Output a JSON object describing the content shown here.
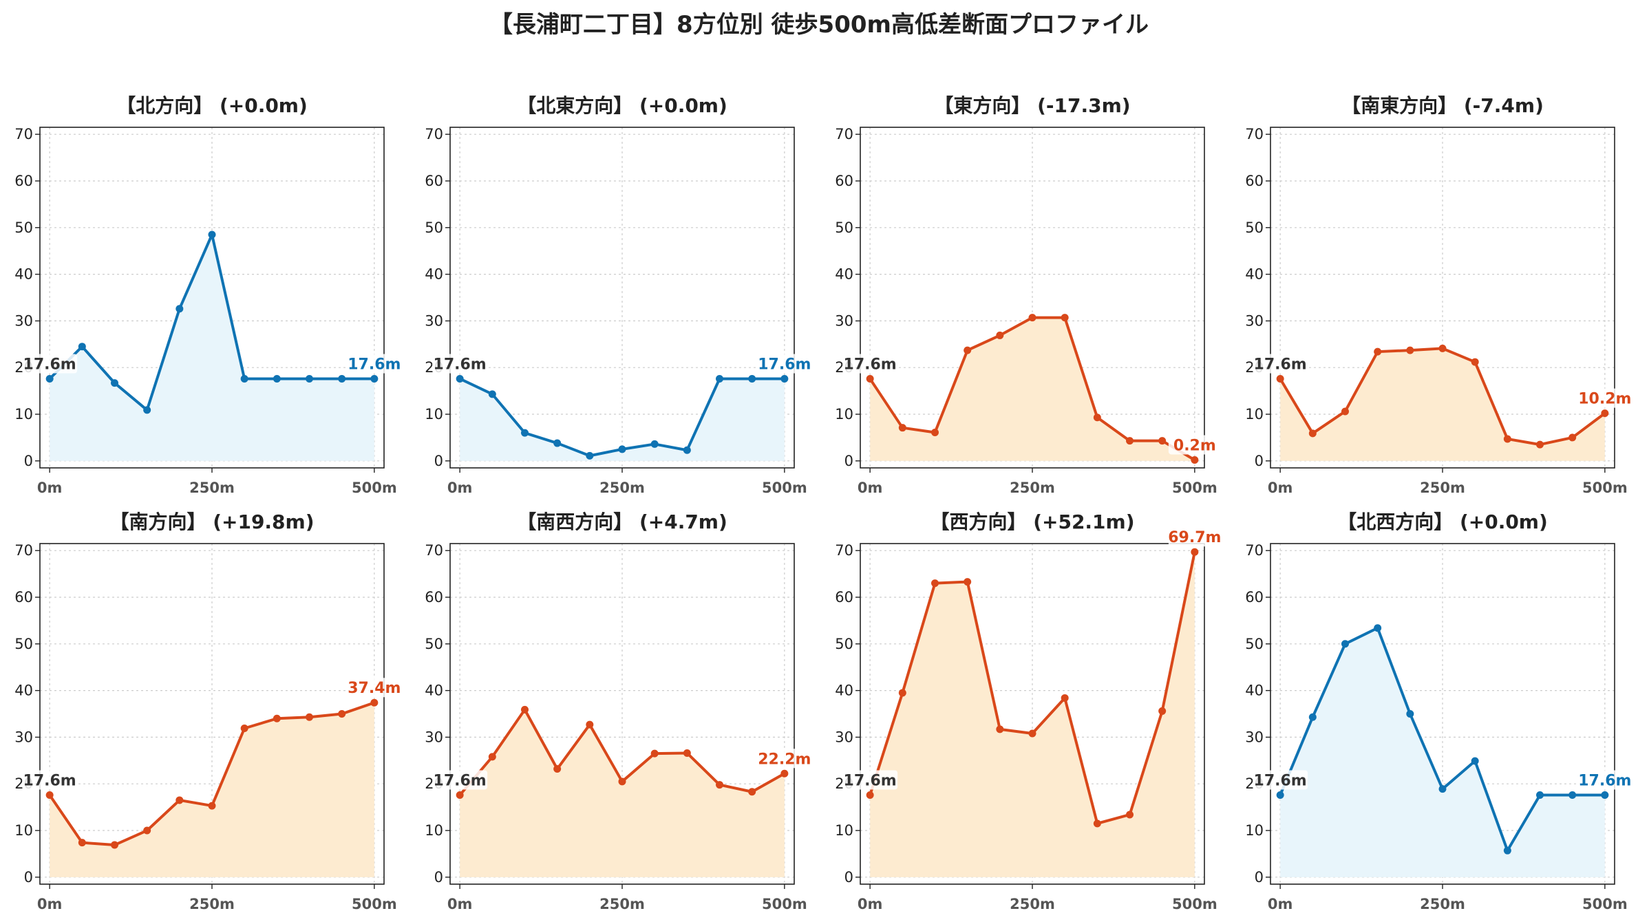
{
  "title": "【長浦町二丁目】8方位別 徒歩500m高低差断面プロファイル",
  "colors": {
    "up_line": "#d9481a",
    "up_fill": "#fdebd0",
    "flat_line": "#0f73b3",
    "flat_fill": "#e8f5fb",
    "start_label": "#333333",
    "grid": "#cccccc"
  },
  "chart_data": [
    {
      "type": "area",
      "title": "【北方向】 (+0.0m)",
      "trend": "flat",
      "x": [
        0,
        50,
        100,
        150,
        200,
        250,
        300,
        350,
        400,
        450,
        500
      ],
      "values": [
        17.6,
        24.5,
        16.7,
        10.9,
        32.6,
        48.5,
        17.6,
        17.6,
        17.6,
        17.6,
        17.6
      ],
      "start_label": "17.6m",
      "end_label": "17.6m",
      "x_tick_labels": [
        "0m",
        "250m",
        "500m"
      ],
      "y_ticks": [
        0,
        10,
        20,
        30,
        40,
        50,
        60,
        70
      ],
      "xlim": [
        -15,
        515
      ],
      "ylim": [
        -1.5,
        71.5
      ],
      "grid": true
    },
    {
      "type": "area",
      "title": "【北東方向】 (+0.0m)",
      "trend": "flat",
      "x": [
        0,
        50,
        100,
        150,
        200,
        250,
        300,
        350,
        400,
        450,
        500
      ],
      "values": [
        17.6,
        14.3,
        6.0,
        3.8,
        1.1,
        2.5,
        3.6,
        2.3,
        17.6,
        17.6,
        17.6
      ],
      "start_label": "17.6m",
      "end_label": "17.6m",
      "x_tick_labels": [
        "0m",
        "250m",
        "500m"
      ],
      "y_ticks": [
        0,
        10,
        20,
        30,
        40,
        50,
        60,
        70
      ],
      "xlim": [
        -15,
        515
      ],
      "ylim": [
        -1.5,
        71.5
      ],
      "grid": true
    },
    {
      "type": "area",
      "title": "【東方向】 (-17.3m)",
      "trend": "change",
      "x": [
        0,
        50,
        100,
        150,
        200,
        250,
        300,
        350,
        400,
        450,
        500
      ],
      "values": [
        17.6,
        7.1,
        6.1,
        23.7,
        26.9,
        30.7,
        30.7,
        9.3,
        4.3,
        4.3,
        0.2
      ],
      "start_label": "17.6m",
      "end_label": "0.2m",
      "x_tick_labels": [
        "0m",
        "250m",
        "500m"
      ],
      "y_ticks": [
        0,
        10,
        20,
        30,
        40,
        50,
        60,
        70
      ],
      "xlim": [
        -15,
        515
      ],
      "ylim": [
        -1.5,
        71.5
      ],
      "grid": true
    },
    {
      "type": "area",
      "title": "【南東方向】 (-7.4m)",
      "trend": "change",
      "x": [
        0,
        50,
        100,
        150,
        200,
        250,
        300,
        350,
        400,
        450,
        500
      ],
      "values": [
        17.6,
        5.9,
        10.6,
        23.4,
        23.7,
        24.1,
        21.2,
        4.7,
        3.5,
        5.0,
        10.2
      ],
      "start_label": "17.6m",
      "end_label": "10.2m",
      "x_tick_labels": [
        "0m",
        "250m",
        "500m"
      ],
      "y_ticks": [
        0,
        10,
        20,
        30,
        40,
        50,
        60,
        70
      ],
      "xlim": [
        -15,
        515
      ],
      "ylim": [
        -1.5,
        71.5
      ],
      "grid": true
    },
    {
      "type": "area",
      "title": "【南方向】 (+19.8m)",
      "trend": "change",
      "x": [
        0,
        50,
        100,
        150,
        200,
        250,
        300,
        350,
        400,
        450,
        500
      ],
      "values": [
        17.6,
        7.4,
        6.9,
        10.0,
        16.5,
        15.3,
        31.9,
        34.0,
        34.3,
        35.0,
        37.4
      ],
      "start_label": "17.6m",
      "end_label": "37.4m",
      "x_tick_labels": [
        "0m",
        "250m",
        "500m"
      ],
      "y_ticks": [
        0,
        10,
        20,
        30,
        40,
        50,
        60,
        70
      ],
      "xlim": [
        -15,
        515
      ],
      "ylim": [
        -1.5,
        71.5
      ],
      "grid": true
    },
    {
      "type": "area",
      "title": "【南西方向】 (+4.7m)",
      "trend": "change",
      "x": [
        0,
        50,
        100,
        150,
        200,
        250,
        300,
        350,
        400,
        450,
        500
      ],
      "values": [
        17.6,
        25.8,
        35.9,
        23.2,
        32.7,
        20.5,
        26.5,
        26.6,
        19.8,
        18.3,
        22.2
      ],
      "start_label": "17.6m",
      "end_label": "22.2m",
      "x_tick_labels": [
        "0m",
        "250m",
        "500m"
      ],
      "y_ticks": [
        0,
        10,
        20,
        30,
        40,
        50,
        60,
        70
      ],
      "xlim": [
        -15,
        515
      ],
      "ylim": [
        -1.5,
        71.5
      ],
      "grid": true
    },
    {
      "type": "area",
      "title": "【西方向】 (+52.1m)",
      "trend": "change",
      "x": [
        0,
        50,
        100,
        150,
        200,
        250,
        300,
        350,
        400,
        450,
        500
      ],
      "values": [
        17.6,
        39.5,
        63.0,
        63.3,
        31.7,
        30.8,
        38.4,
        11.5,
        13.4,
        35.6,
        69.7
      ],
      "start_label": "17.6m",
      "end_label": "69.7m",
      "x_tick_labels": [
        "0m",
        "250m",
        "500m"
      ],
      "y_ticks": [
        0,
        10,
        20,
        30,
        40,
        50,
        60,
        70
      ],
      "xlim": [
        -15,
        515
      ],
      "ylim": [
        -1.5,
        71.5
      ],
      "grid": true
    },
    {
      "type": "area",
      "title": "【北西方向】 (+0.0m)",
      "trend": "flat",
      "x": [
        0,
        50,
        100,
        150,
        200,
        250,
        300,
        350,
        400,
        450,
        500
      ],
      "values": [
        17.6,
        34.3,
        50.0,
        53.4,
        35.0,
        18.9,
        24.9,
        5.7,
        17.6,
        17.6,
        17.6
      ],
      "start_label": "17.6m",
      "end_label": "17.6m",
      "x_tick_labels": [
        "0m",
        "250m",
        "500m"
      ],
      "y_ticks": [
        0,
        10,
        20,
        30,
        40,
        50,
        60,
        70
      ],
      "xlim": [
        -15,
        515
      ],
      "ylim": [
        -1.5,
        71.5
      ],
      "grid": true
    }
  ]
}
